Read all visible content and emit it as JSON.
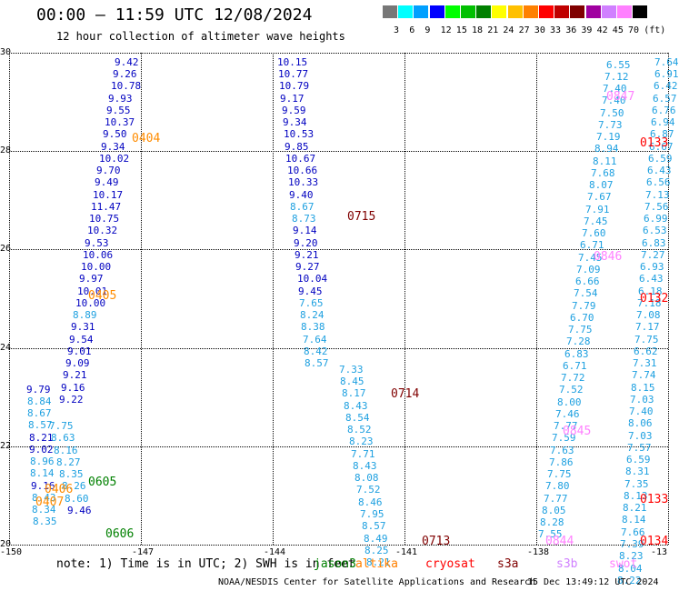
{
  "header": {
    "title": "00:00 — 11:59 UTC 12/08/2024",
    "subtitle": "12 hour collection of altimeter wave heights"
  },
  "legend": {
    "bins": [
      {
        "label": "3",
        "color": "#777777"
      },
      {
        "label": "6",
        "color": "#00ffff"
      },
      {
        "label": "9",
        "color": "#00a0ff"
      },
      {
        "label": "12",
        "color": "#0000ff"
      },
      {
        "label": "15",
        "color": "#00ff00"
      },
      {
        "label": "18",
        "color": "#00c000"
      },
      {
        "label": "21",
        "color": "#008000"
      },
      {
        "label": "24",
        "color": "#ffff00"
      },
      {
        "label": "27",
        "color": "#ffc000"
      },
      {
        "label": "30",
        "color": "#ff8000"
      },
      {
        "label": "33",
        "color": "#ff0000"
      },
      {
        "label": "36",
        "color": "#c00000"
      },
      {
        "label": "39",
        "color": "#800000"
      },
      {
        "label": "42",
        "color": "#a000a0"
      },
      {
        "label": "45",
        "color": "#d080ff"
      },
      {
        "label": "70",
        "color": "#ff80ff"
      },
      {
        "label": "(ft)",
        "color": "#000000"
      }
    ]
  },
  "axes": {
    "y_ticks": [
      "30",
      "28",
      "26",
      "24",
      "22",
      "20"
    ],
    "x_ticks": [
      "-150",
      "-147",
      "-144",
      "-141",
      "-138",
      "-13"
    ]
  },
  "chart_data": {
    "type": "map",
    "xlim": [
      -150,
      -135
    ],
    "ylim": [
      20,
      30
    ],
    "satellites": [
      {
        "name": "jason3",
        "color": "#008000"
      },
      {
        "name": "altika",
        "color": "#ff8000"
      },
      {
        "name": "cryosat",
        "color": "#ff0000"
      },
      {
        "name": "s3a",
        "color": "#800000"
      },
      {
        "name": "s3b",
        "color": "#d080ff"
      },
      {
        "name": "swot",
        "color": "#ff80ff"
      }
    ],
    "passes": [
      {
        "label": "0404",
        "color": "#ff8c00",
        "lon": -147.2,
        "lat": 28.25
      },
      {
        "label": "0405",
        "color": "#ff8c00",
        "lon": -148.2,
        "lat": 25.05
      },
      {
        "label": "0605",
        "color": "#008000",
        "lon": -148.2,
        "lat": 21.25
      },
      {
        "label": "0406",
        "color": "#ff8c00",
        "lon": -149.2,
        "lat": 21.1
      },
      {
        "label": "0407",
        "color": "#ff8c00",
        "lon": -149.4,
        "lat": 20.85
      },
      {
        "label": "0606",
        "color": "#008000",
        "lon": -147.8,
        "lat": 20.2
      },
      {
        "label": "0715",
        "color": "#800000",
        "lon": -142.3,
        "lat": 26.65
      },
      {
        "label": "0714",
        "color": "#800000",
        "lon": -141.3,
        "lat": 23.05
      },
      {
        "label": "0713",
        "color": "#800000",
        "lon": -140.6,
        "lat": 20.05
      },
      {
        "label": "0847",
        "color": "#ff80ff",
        "lon": -136.4,
        "lat": 29.1
      },
      {
        "label": "0846",
        "color": "#ff80ff",
        "lon": -136.7,
        "lat": 25.85
      },
      {
        "label": "0845",
        "color": "#ff80ff",
        "lon": -137.4,
        "lat": 22.3
      },
      {
        "label": "0844",
        "color": "#ff80ff",
        "lon": -137.8,
        "lat": 20.05
      },
      {
        "label": "0133",
        "color": "#ff0000",
        "lon": -134.7,
        "lat": 28.15
      },
      {
        "label": "0132",
        "color": "#ff0000",
        "lon": -135.2,
        "lat": 25.0
      },
      {
        "label": "0133",
        "color": "#ff0000",
        "lon": -135.4,
        "lat": 20.9
      },
      {
        "label": "0134",
        "color": "#ff0000",
        "lon": -135.4,
        "lat": 20.05
      }
    ],
    "tracks": [
      {
        "name": "track-a",
        "lon_start": -147.6,
        "lat_start": 29.8,
        "lon_step": -0.045,
        "lat_step": -0.245,
        "values": [
          "9.42",
          "9.26",
          "10.78",
          "9.93",
          "9.55",
          "10.37",
          "9.50",
          "9.34",
          "10.02",
          "9.70",
          "9.49",
          "10.17",
          "11.47",
          "10.75",
          "10.32",
          "9.53",
          "10.06",
          "10.00",
          "9.97",
          "10.01",
          "10.00",
          "8.89",
          "9.31",
          "9.54",
          "9.01",
          "9.09",
          "9.21",
          "9.16",
          "9.22"
        ],
        "colors": [
          "#0000c0",
          "#0000c0",
          "#0000c0",
          "#0000c0",
          "#0000c0",
          "#0000c0",
          "#0000c0",
          "#0000c0",
          "#0000c0",
          "#0000c0",
          "#0000c0",
          "#0000c0",
          "#0000c0",
          "#0000c0",
          "#0000c0",
          "#0000c0",
          "#0000c0",
          "#0000c0",
          "#0000c0",
          "#0000c0",
          "#0000c0",
          "#1ea0e0",
          "#0000c0",
          "#0000c0",
          "#0000c0",
          "#0000c0",
          "#0000c0",
          "#0000c0",
          "#0000c0"
        ]
      },
      {
        "name": "track-b",
        "lon_start": -149.6,
        "lat_start": 23.15,
        "lon_step": 0.012,
        "lat_step": -0.245,
        "values": [
          "9.79",
          "8.84",
          "8.67",
          "8.57",
          "8.21",
          "9.02",
          "8.96",
          "8.14",
          "9.16",
          "8.43",
          "8.34",
          "8.35"
        ],
        "colors": [
          "#0000c0",
          "#1ea0e0",
          "#1ea0e0",
          "#1ea0e0",
          "#0000c0",
          "#0000c0",
          "#1ea0e0",
          "#1ea0e0",
          "#0000c0",
          "#1ea0e0",
          "#1ea0e0",
          "#1ea0e0"
        ]
      },
      {
        "name": "track-c",
        "lon_start": -149.1,
        "lat_start": 22.4,
        "lon_step": 0.06,
        "lat_step": -0.245,
        "values": [
          "7.75",
          "8.63",
          "8.16",
          "8.27",
          "8.35",
          "8.26",
          "8.60",
          "9.46"
        ],
        "colors": [
          "#1ea0e0",
          "#1ea0e0",
          "#1ea0e0",
          "#1ea0e0",
          "#1ea0e0",
          "#1ea0e0",
          "#1ea0e0",
          "#0000c0"
        ]
      },
      {
        "name": "track-d",
        "lon_start": -143.9,
        "lat_start": 29.8,
        "lon_step": 0.025,
        "lat_step": -0.245,
        "values": [
          "10.15",
          "10.77",
          "10.79",
          "9.17",
          "9.59",
          "9.34",
          "10.53",
          "9.85",
          "10.67",
          "10.66",
          "10.33",
          "9.40",
          "8.67",
          "8.73",
          "9.14",
          "9.20",
          "9.21",
          "9.27",
          "10.04",
          "9.45",
          "7.65",
          "8.24",
          "8.38",
          "7.64",
          "8.42",
          "8.57"
        ],
        "colors": [
          "#0000c0",
          "#0000c0",
          "#0000c0",
          "#0000c0",
          "#0000c0",
          "#0000c0",
          "#0000c0",
          "#0000c0",
          "#0000c0",
          "#0000c0",
          "#0000c0",
          "#0000c0",
          "#1ea0e0",
          "#1ea0e0",
          "#0000c0",
          "#0000c0",
          "#0000c0",
          "#0000c0",
          "#0000c0",
          "#0000c0",
          "#1ea0e0",
          "#1ea0e0",
          "#1ea0e0",
          "#1ea0e0",
          "#1ea0e0",
          "#1ea0e0"
        ]
      },
      {
        "name": "track-e",
        "lon_start": -142.5,
        "lat_start": 23.55,
        "lon_step": 0.04,
        "lat_step": -0.245,
        "values": [
          "7.33",
          "8.45",
          "8.17",
          "8.43",
          "8.54",
          "8.52",
          "8.23",
          "7.71",
          "8.43",
          "8.08",
          "7.52",
          "8.46",
          "7.95",
          "8.57",
          "8.49",
          "8.25",
          "8.21"
        ],
        "colors": [
          "#1ea0e0",
          "#1ea0e0",
          "#1ea0e0",
          "#1ea0e0",
          "#1ea0e0",
          "#1ea0e0",
          "#1ea0e0",
          "#1ea0e0",
          "#1ea0e0",
          "#1ea0e0",
          "#1ea0e0",
          "#1ea0e0",
          "#1ea0e0",
          "#1ea0e0",
          "#1ea0e0",
          "#1ea0e0",
          "#1ea0e0"
        ]
      },
      {
        "name": "track-f",
        "lon_start": -136.4,
        "lat_start": 29.75,
        "lon_step": -0.04,
        "lat_step": -0.245,
        "values": [
          "6.55",
          "7.12",
          "7.40",
          "7.40",
          "7.50",
          "7.73",
          "7.19",
          "8.94",
          "8.11",
          "7.68",
          "8.07",
          "7.67",
          "7.91",
          "7.45",
          "7.60",
          "6.71",
          "7.45",
          "7.09",
          "6.66",
          "7.54",
          "7.79",
          "6.70",
          "7.75",
          "7.28",
          "6.83",
          "6.71",
          "7.72",
          "7.52",
          "8.00",
          "7.46",
          "7.77",
          "7.59",
          "7.63",
          "7.86",
          "7.75",
          "7.80",
          "7.77",
          "8.05",
          "8.28",
          "7.55"
        ],
        "colors": [
          "#1ea0e0",
          "#1ea0e0",
          "#1ea0e0",
          "#1ea0e0",
          "#1ea0e0",
          "#1ea0e0",
          "#1ea0e0",
          "#1ea0e0",
          "#1ea0e0",
          "#1ea0e0",
          "#1ea0e0",
          "#1ea0e0",
          "#1ea0e0",
          "#1ea0e0",
          "#1ea0e0",
          "#1ea0e0",
          "#1ea0e0",
          "#1ea0e0",
          "#1ea0e0",
          "#1ea0e0",
          "#1ea0e0",
          "#1ea0e0",
          "#1ea0e0",
          "#1ea0e0",
          "#1ea0e0",
          "#1ea0e0",
          "#1ea0e0",
          "#1ea0e0",
          "#1ea0e0",
          "#1ea0e0",
          "#1ea0e0",
          "#1ea0e0",
          "#1ea0e0",
          "#1ea0e0",
          "#1ea0e0",
          "#1ea0e0",
          "#1ea0e0",
          "#1ea0e0",
          "#1ea0e0",
          "#1ea0e0"
        ]
      },
      {
        "name": "track-g",
        "lon_start": -135.3,
        "lat_start": 29.8,
        "lon_step": -0.02,
        "lat_step": -0.245,
        "values": [
          "7.64",
          "6.91",
          "6.42",
          "6.57",
          "6.76",
          "6.94",
          "6.87",
          "6.67",
          "6.59",
          "6.43",
          "6.56",
          "7.13",
          "7.56",
          "6.99",
          "6.53",
          "6.83",
          "7.27",
          "6.93",
          "6.43",
          "6.18",
          "7.18",
          "7.08",
          "7.17",
          "7.75",
          "6.62",
          "7.31",
          "7.74",
          "8.15",
          "7.03",
          "7.40",
          "8.06",
          "7.03",
          "7.57",
          "6.59",
          "8.31",
          "7.35",
          "8.13",
          "8.21",
          "8.14",
          "7.66",
          "7.39",
          "8.23",
          "8.04",
          "8.22"
        ],
        "colors": [
          "#1ea0e0",
          "#1ea0e0",
          "#1ea0e0",
          "#1ea0e0",
          "#1ea0e0",
          "#1ea0e0",
          "#1ea0e0",
          "#1ea0e0",
          "#1ea0e0",
          "#1ea0e0",
          "#1ea0e0",
          "#1ea0e0",
          "#1ea0e0",
          "#1ea0e0",
          "#1ea0e0",
          "#1ea0e0",
          "#1ea0e0",
          "#1ea0e0",
          "#1ea0e0",
          "#1ea0e0",
          "#1ea0e0",
          "#1ea0e0",
          "#1ea0e0",
          "#1ea0e0",
          "#1ea0e0",
          "#1ea0e0",
          "#1ea0e0",
          "#1ea0e0",
          "#1ea0e0",
          "#1ea0e0",
          "#1ea0e0",
          "#1ea0e0",
          "#1ea0e0",
          "#1ea0e0",
          "#1ea0e0",
          "#1ea0e0",
          "#1ea0e0",
          "#1ea0e0",
          "#1ea0e0",
          "#1ea0e0",
          "#1ea0e0",
          "#1ea0e0",
          "#1ea0e0",
          "#1ea0e0"
        ]
      }
    ]
  },
  "footer": {
    "note": "note: 1) Time is in UTC; 2) SWH is in feet",
    "credit": "NOAA/NESDIS Center for Satellite Applications and Research",
    "timestamp": "15 Dec 13:49:12 UTC 2024"
  }
}
